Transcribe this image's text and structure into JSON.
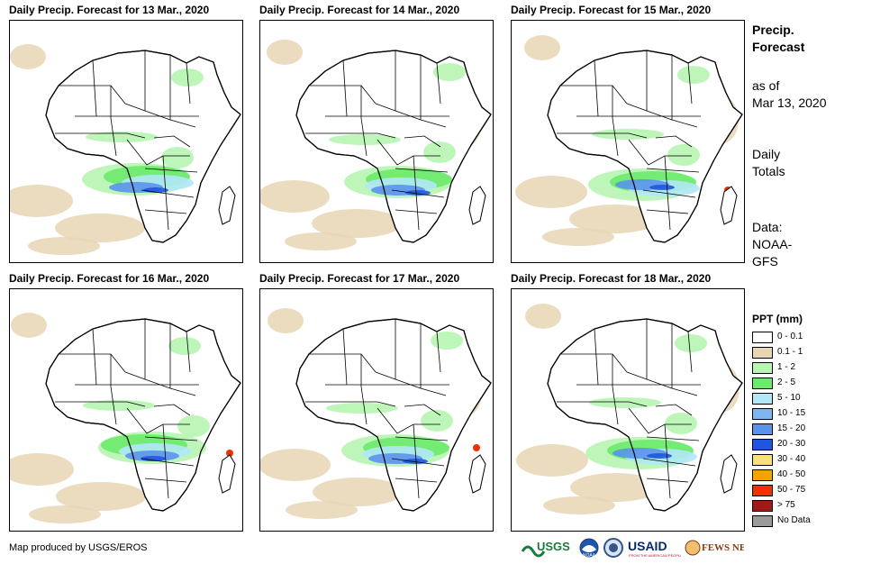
{
  "panels": [
    {
      "title": "Daily Precip. Forecast for 13 Mar., 2020"
    },
    {
      "title": "Daily Precip. Forecast for 14 Mar., 2020"
    },
    {
      "title": "Daily Precip. Forecast for 15 Mar., 2020"
    },
    {
      "title": "Daily Precip. Forecast for 16 Mar., 2020"
    },
    {
      "title": "Daily Precip. Forecast for 17 Mar., 2020"
    },
    {
      "title": "Daily Precip. Forecast for 18 Mar., 2020"
    }
  ],
  "sidebar": {
    "heading_line1": "Precip.",
    "heading_line2": "Forecast",
    "asof_line1": "as of",
    "asof_line2": "Mar 13, 2020",
    "totals_line1": "Daily",
    "totals_line2": "Totals",
    "source_line1": "Data:",
    "source_line2": "NOAA-",
    "source_line3": "GFS"
  },
  "legend": {
    "title": "PPT (mm)",
    "items": [
      {
        "label": "0 - 0.1",
        "color": "#ffffff"
      },
      {
        "label": "0.1 - 1",
        "color": "#e8d6b5"
      },
      {
        "label": "1 - 2",
        "color": "#b7f5b2"
      },
      {
        "label": "2 - 5",
        "color": "#6bea6b"
      },
      {
        "label": "5 - 10",
        "color": "#b1e8f7"
      },
      {
        "label": "10 - 15",
        "color": "#80b6ee"
      },
      {
        "label": "15 - 20",
        "color": "#5a93ea"
      },
      {
        "label": "20 - 30",
        "color": "#1f56e0"
      },
      {
        "label": "30 - 40",
        "color": "#fbe07a"
      },
      {
        "label": "40 - 50",
        "color": "#f3a400"
      },
      {
        "label": "50 - 75",
        "color": "#f03000"
      },
      {
        "label": "> 75",
        "color": "#a01818"
      },
      {
        "label": "No Data",
        "color": "#9a9a9a"
      }
    ]
  },
  "footer": {
    "credit": "Map produced by USGS/EROS",
    "logos": [
      "USGS",
      "NOAA",
      "USAID",
      "FEWS NET"
    ]
  },
  "colors": {
    "sand": "#e8d6b5",
    "light_green": "#b7f5b2",
    "green": "#6bea6b",
    "cyan": "#b1e8f7",
    "blue": "#5a93ea",
    "dark_blue": "#1f56e0",
    "red": "#f03000"
  }
}
